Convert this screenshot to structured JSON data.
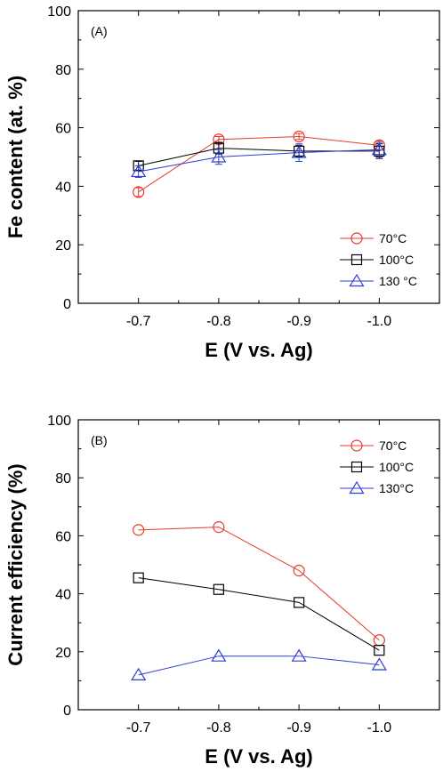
{
  "colors": {
    "red": "#e8392c",
    "black": "#000000",
    "blue": "#2f3dd6"
  },
  "chart_data": [
    {
      "type": "line",
      "panel_label": "(A)",
      "xlabel": "E (V vs. Ag)",
      "ylabel": "Fe content (at. %)",
      "categories": [
        "-0.7",
        "-0.8",
        "-0.9",
        "-1.0"
      ],
      "ylim": [
        0,
        100
      ],
      "yticks": [
        0,
        20,
        40,
        60,
        80,
        100
      ],
      "grid": false,
      "legend_position": "bottom-right",
      "series": [
        {
          "name": "70°C",
          "marker": "circle",
          "color": "#e8392c",
          "values": [
            38,
            56,
            57,
            54
          ],
          "errors": [
            1.5,
            1.0,
            1.0,
            1.5
          ]
        },
        {
          "name": "100°C",
          "marker": "square",
          "color": "#000000",
          "values": [
            47,
            53,
            52,
            52
          ],
          "errors": [
            1.5,
            2.0,
            2.0,
            2.5
          ]
        },
        {
          "name": "130 °C",
          "marker": "triangle",
          "color": "#2f3dd6",
          "values": [
            45,
            50,
            51.5,
            52.5
          ],
          "errors": [
            2.0,
            2.5,
            3.0,
            2.5
          ]
        }
      ]
    },
    {
      "type": "line",
      "panel_label": "(B)",
      "xlabel": "E (V vs. Ag)",
      "ylabel": "Current efficiency (%)",
      "categories": [
        "-0.7",
        "-0.8",
        "-0.9",
        "-1.0"
      ],
      "ylim": [
        0,
        100
      ],
      "yticks": [
        0,
        20,
        40,
        60,
        80,
        100
      ],
      "grid": false,
      "legend_position": "top-right",
      "series": [
        {
          "name": "70°C",
          "marker": "circle",
          "color": "#e8392c",
          "values": [
            62,
            63,
            48,
            24
          ]
        },
        {
          "name": "100°C",
          "marker": "square",
          "color": "#000000",
          "values": [
            45.5,
            41.5,
            37,
            20.5
          ]
        },
        {
          "name": "130°C",
          "marker": "triangle",
          "color": "#2f3dd6",
          "values": [
            12,
            18.5,
            18.5,
            15.5
          ]
        }
      ]
    }
  ]
}
